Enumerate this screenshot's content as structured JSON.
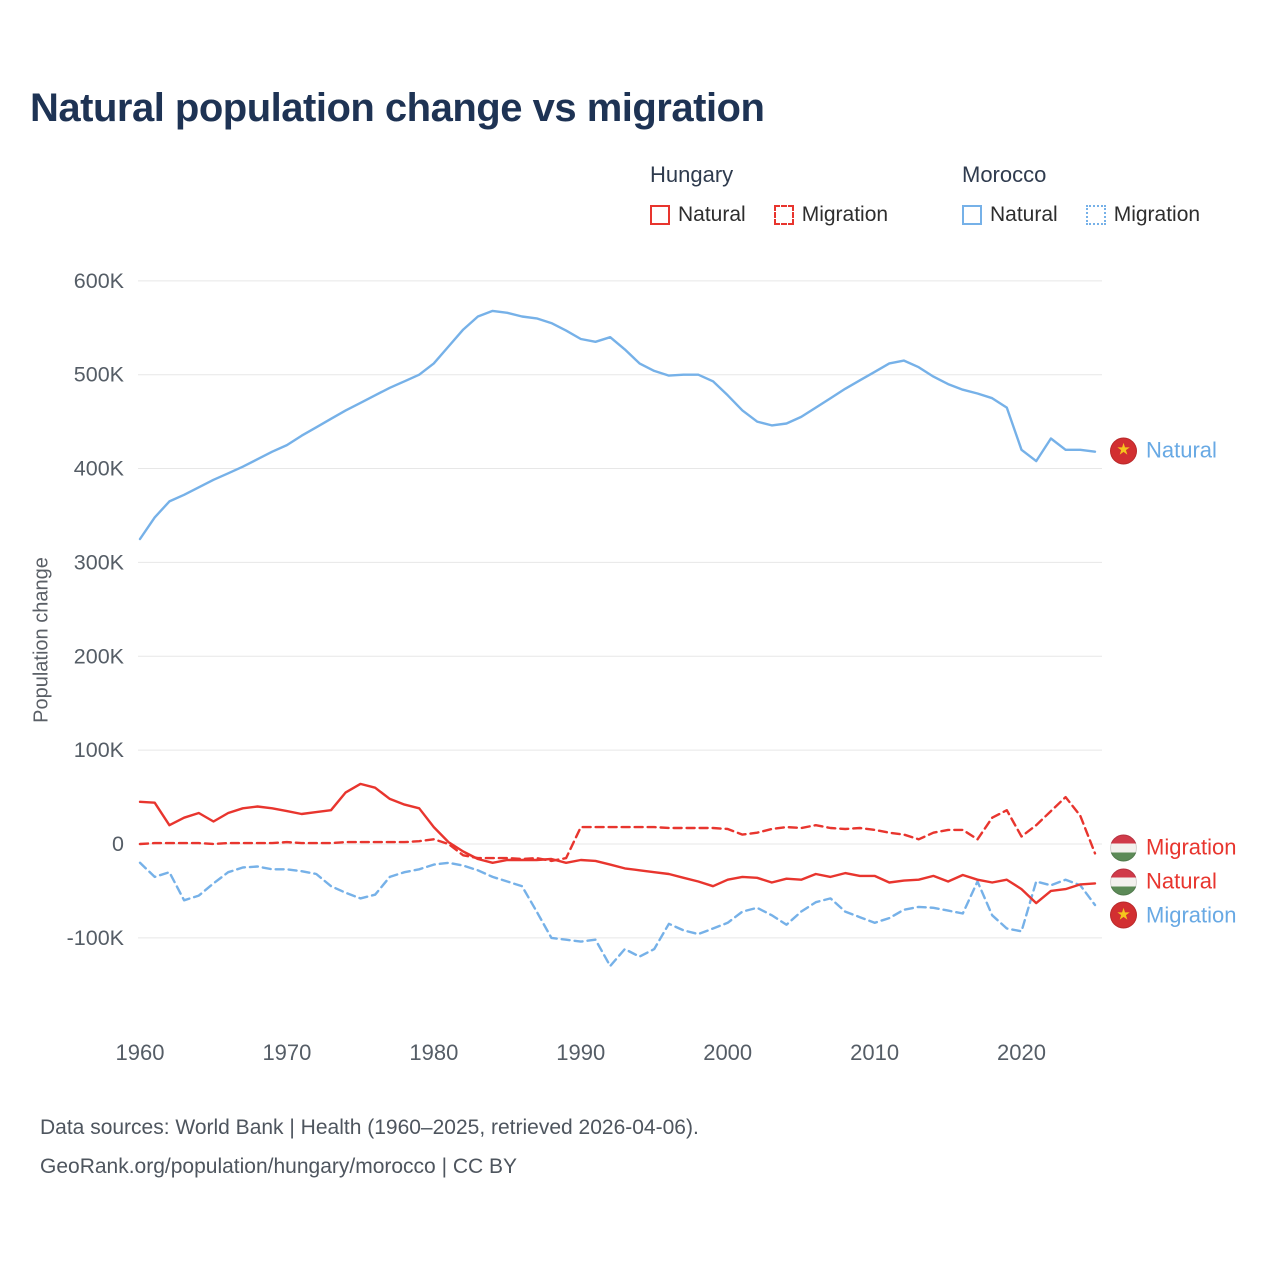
{
  "title": "Natural population change vs migration",
  "y_axis_title": "Population change",
  "icons": {
    "star": "★"
  },
  "legend": {
    "groups": [
      {
        "name": "Hungary",
        "items": [
          {
            "label": "Natural"
          },
          {
            "label": "Migration"
          }
        ]
      },
      {
        "name": "Morocco",
        "items": [
          {
            "label": "Natural"
          },
          {
            "label": "Migration"
          }
        ]
      }
    ]
  },
  "footer": {
    "line1": "Data sources: World Bank | Health (1960–2025, retrieved 2026-04-06).",
    "line2": "GeoRank.org/population/hungary/morocco | CC BY"
  },
  "colors": {
    "hungary": "#e8352e",
    "morocco": "#76b1e8",
    "grid": "#e7e7e7",
    "tick_label": "#555d66",
    "title": "#1e3354"
  },
  "chart_data": {
    "type": "line",
    "title": "Natural population change vs migration",
    "ylabel": "Population change",
    "y_unit": "thousands",
    "x_range": [
      1960,
      2025
    ],
    "x_ticks": [
      1960,
      1970,
      1980,
      1990,
      2000,
      2010,
      2020
    ],
    "y_ticks": [
      {
        "value": 600,
        "label": "600K"
      },
      {
        "value": 500,
        "label": "500K"
      },
      {
        "value": 400,
        "label": "400K"
      },
      {
        "value": 300,
        "label": "300K"
      },
      {
        "value": 200,
        "label": "200K"
      },
      {
        "value": 100,
        "label": "100K"
      },
      {
        "value": 0,
        "label": "0"
      },
      {
        "value": -100,
        "label": "-100K"
      }
    ],
    "series": [
      {
        "name": "Morocco Natural",
        "color": "#76b1e8",
        "dash": "solid",
        "values": [
          325,
          348,
          365,
          372,
          380,
          388,
          395,
          402,
          410,
          418,
          425,
          435,
          444,
          453,
          462,
          470,
          478,
          486,
          493,
          500,
          512,
          530,
          548,
          562,
          568,
          566,
          562,
          560,
          555,
          547,
          538,
          535,
          540,
          527,
          512,
          504,
          499,
          500,
          500,
          493,
          478,
          462,
          450,
          446,
          448,
          455,
          465,
          475,
          485,
          494,
          503,
          512,
          515,
          508,
          498,
          490,
          484,
          480,
          475,
          465,
          420,
          408,
          432,
          420,
          420,
          418
        ]
      },
      {
        "name": "Morocco Migration",
        "color": "#76b1e8",
        "dash": "dashed",
        "values": [
          -20,
          -35,
          -30,
          -60,
          -55,
          -42,
          -30,
          -25,
          -24,
          -27,
          -27,
          -29,
          -32,
          -45,
          -52,
          -58,
          -54,
          -35,
          -30,
          -27,
          -22,
          -20,
          -23,
          -28,
          -35,
          -40,
          -45,
          -72,
          -100,
          -102,
          -104,
          -102,
          -130,
          -112,
          -120,
          -112,
          -85,
          -92,
          -96,
          -90,
          -84,
          -72,
          -68,
          -76,
          -86,
          -72,
          -62,
          -58,
          -72,
          -78,
          -84,
          -79,
          -70,
          -67,
          -68,
          -71,
          -74,
          -40,
          -76,
          -90,
          -93,
          -40,
          -44,
          -38,
          -44,
          -65
        ]
      },
      {
        "name": "Hungary Migration",
        "color": "#e8352e",
        "dash": "dashed",
        "values": [
          0,
          1,
          1,
          1,
          1,
          0,
          1,
          1,
          1,
          1,
          2,
          1,
          1,
          1,
          2,
          2,
          2,
          2,
          2,
          3,
          5,
          0,
          -12,
          -15,
          -15,
          -15,
          -16,
          -15,
          -18,
          -15,
          18,
          18,
          18,
          18,
          18,
          18,
          17,
          17,
          17,
          17,
          16,
          10,
          12,
          16,
          18,
          17,
          20,
          17,
          16,
          17,
          15,
          12,
          10,
          5,
          12,
          15,
          15,
          5,
          28,
          36,
          8,
          20,
          35,
          50,
          30,
          -10
        ]
      },
      {
        "name": "Hungary Natural",
        "color": "#e8352e",
        "dash": "solid",
        "values": [
          45,
          44,
          20,
          28,
          33,
          24,
          33,
          38,
          40,
          38,
          35,
          32,
          34,
          36,
          55,
          64,
          60,
          48,
          42,
          38,
          18,
          2,
          -8,
          -16,
          -20,
          -17,
          -17,
          -17,
          -16,
          -20,
          -17,
          -18,
          -22,
          -26,
          -28,
          -30,
          -32,
          -36,
          -40,
          -45,
          -38,
          -35,
          -36,
          -41,
          -37,
          -38,
          -32,
          -35,
          -31,
          -34,
          -34,
          -41,
          -39,
          -38,
          -34,
          -40,
          -33,
          -38,
          -41,
          -38,
          -48,
          -63,
          -50,
          -48,
          -43,
          -42
        ]
      }
    ],
    "end_labels": [
      {
        "text": "Natural",
        "color": "#68a9e4",
        "flag": "morocco",
        "value": 419
      },
      {
        "text": "Migration",
        "color": "#e8352e",
        "flag": "hungary",
        "value": -4
      },
      {
        "text": "Natural",
        "color": "#e8352e",
        "flag": "hungary",
        "value": -40
      },
      {
        "text": "Migration",
        "color": "#68a9e4",
        "flag": "morocco",
        "value": -76
      }
    ]
  }
}
